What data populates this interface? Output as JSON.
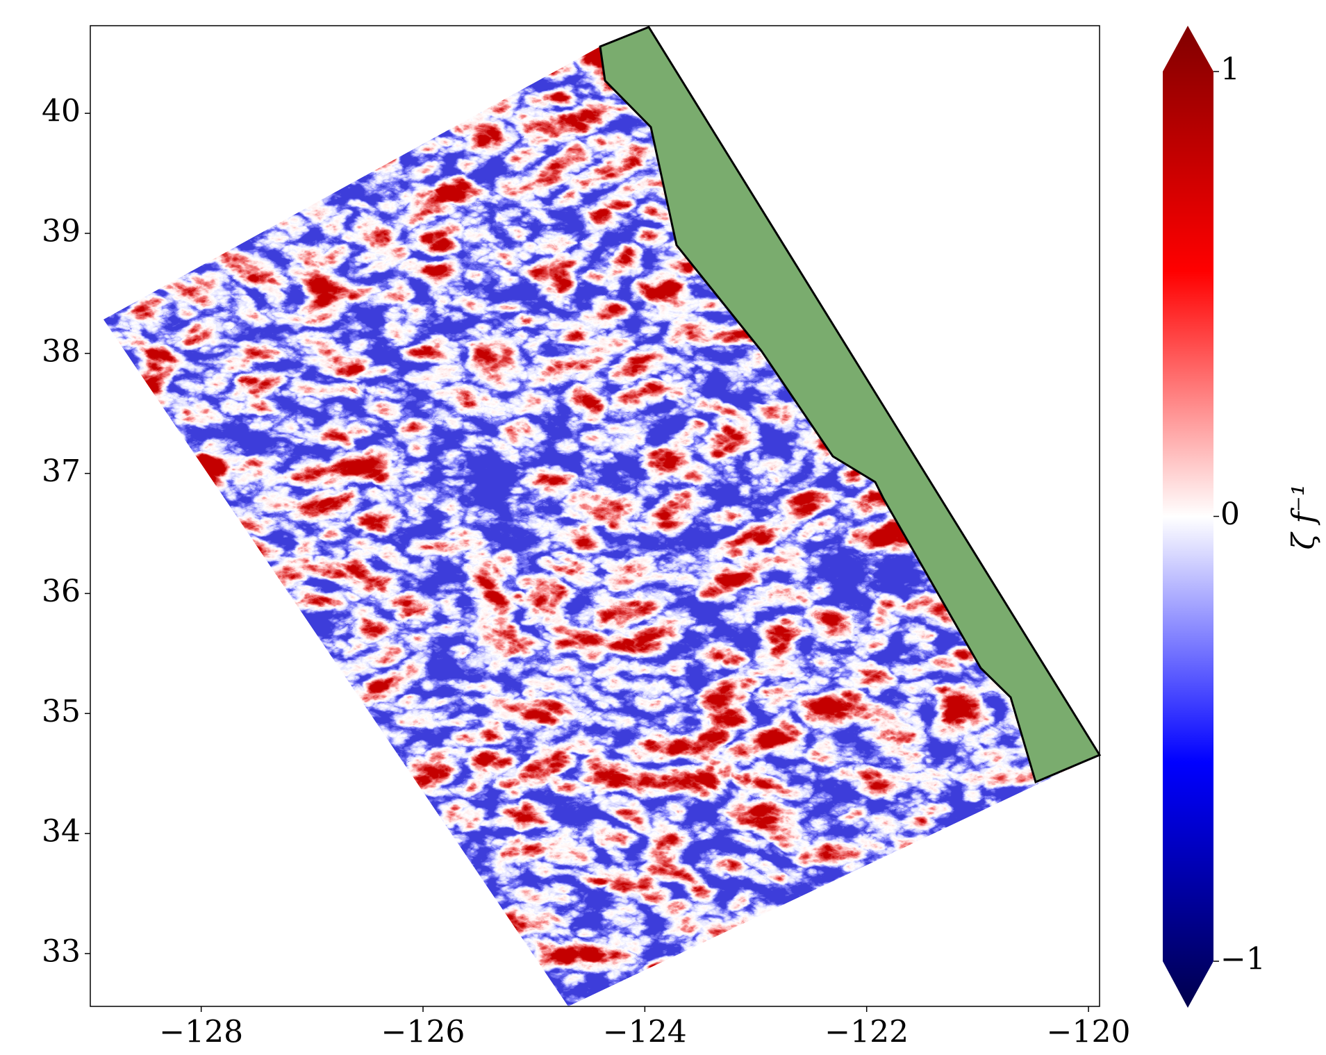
{
  "chart_data": {
    "type": "heatmap",
    "xlim": [
      -129,
      -119.9
    ],
    "ylim": [
      32.56,
      40.73
    ],
    "xticks": [
      {
        "value": -128,
        "label": "−128"
      },
      {
        "value": -126,
        "label": "−126"
      },
      {
        "value": -124,
        "label": "−124"
      },
      {
        "value": -122,
        "label": "−122"
      },
      {
        "value": -120,
        "label": "−120"
      }
    ],
    "yticks": [
      33,
      34,
      35,
      36,
      37,
      38,
      39,
      40
    ],
    "colorbar": {
      "label": "ζ f⁻¹",
      "lim": [
        -1,
        1
      ],
      "ticks": [
        {
          "value": -1,
          "label": "−1"
        },
        0,
        1
      ],
      "colors": [
        "#00004c",
        "#0000ff",
        "#ffffff",
        "#ff0000",
        "#800000"
      ]
    },
    "land_color": "#7aac6e"
  }
}
